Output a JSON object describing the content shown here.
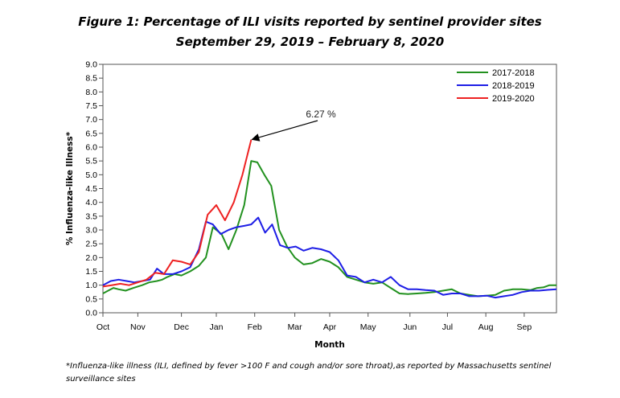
{
  "titles": {
    "line1": "Figure 1: Percentage of ILI visits reported by sentinel provider sites",
    "line2": "September 29, 2019 –  February 8, 2020"
  },
  "footnote": "*Influenza-like illness (ILI, defined by fever >100 F and cough and/or sore throat),as reported by Massachusetts sentinel surveillance sites",
  "chart_data": {
    "type": "line",
    "xlabel": "Month",
    "ylabel": "% Influenza-like Illness*",
    "ylim": [
      0,
      9
    ],
    "xlim": [
      0,
      52
    ],
    "yticks": [
      "0.0",
      "0.5",
      "1.0",
      "1.5",
      "2.0",
      "2.5",
      "3.0",
      "3.5",
      "4.0",
      "4.5",
      "5.0",
      "5.5",
      "6.0",
      "6.5",
      "7.0",
      "7.5",
      "8.0",
      "8.5",
      "9.0"
    ],
    "xticks": [
      {
        "label": "Oct",
        "week": 0
      },
      {
        "label": "Nov",
        "week": 4
      },
      {
        "label": "Dec",
        "week": 9
      },
      {
        "label": "Jan",
        "week": 13
      },
      {
        "label": "Feb",
        "week": 17.4
      },
      {
        "label": "Mar",
        "week": 22
      },
      {
        "label": "Apr",
        "week": 26
      },
      {
        "label": "May",
        "week": 30.4
      },
      {
        "label": "Jun",
        "week": 35.2
      },
      {
        "label": "Jul",
        "week": 39.5
      },
      {
        "label": "Aug",
        "week": 43.9
      },
      {
        "label": "Sep",
        "week": 48.3
      }
    ],
    "grid": false,
    "legend_position": "top-right",
    "series": [
      {
        "name": "2017-2018",
        "color": "#22911f",
        "x": [
          0,
          0.6,
          1.2,
          1.8,
          2.6,
          3.5,
          4.5,
          5.3,
          6.2,
          6.8,
          7.4,
          8.2,
          9.0,
          10.0,
          11.0,
          11.8,
          12.6,
          13.6,
          14.4,
          15.3,
          16.2,
          17.0,
          17.7,
          18.5,
          19.3,
          20.2,
          21.1,
          22.0,
          23.0,
          24.0,
          25.0,
          26.0,
          27.0,
          28.0,
          29.0,
          30.0,
          31.0,
          32.0,
          33.0,
          34.0,
          35.0,
          36.0,
          37.0,
          38.0,
          39.0,
          40.0,
          41.0,
          42.0,
          43.0,
          44.0,
          45.0,
          46.0,
          47.0,
          48.0,
          49.0,
          49.8,
          50.5,
          51.2,
          52.0
        ],
        "y": [
          0.7,
          0.8,
          0.9,
          0.85,
          0.8,
          0.9,
          1.0,
          1.1,
          1.15,
          1.2,
          1.3,
          1.4,
          1.35,
          1.5,
          1.7,
          2.0,
          3.1,
          2.85,
          2.3,
          3.0,
          3.9,
          5.5,
          5.45,
          5.0,
          4.6,
          3.0,
          2.4,
          2.0,
          1.75,
          1.8,
          1.95,
          1.85,
          1.65,
          1.3,
          1.2,
          1.1,
          1.05,
          1.1,
          0.9,
          0.7,
          0.68,
          0.7,
          0.72,
          0.75,
          0.8,
          0.85,
          0.7,
          0.65,
          0.6,
          0.62,
          0.65,
          0.8,
          0.85,
          0.85,
          0.82,
          0.9,
          0.92,
          1.0,
          1.0
        ]
      },
      {
        "name": "2018-2019",
        "color": "#1e1ee6",
        "x": [
          0,
          0.9,
          1.8,
          2.7,
          3.6,
          4.5,
          5.4,
          6.2,
          7.0,
          8.0,
          9.0,
          10.0,
          11.0,
          11.8,
          12.6,
          13.5,
          14.4,
          15.3,
          16.2,
          17.0,
          17.8,
          18.6,
          19.4,
          20.3,
          21.2,
          22.1,
          23.0,
          24.0,
          25.0,
          26.0,
          27.0,
          28.0,
          29.0,
          30.0,
          31.0,
          32.0,
          33.0,
          34.0,
          35.0,
          36.0,
          37.0,
          38.0,
          39.0,
          40.0,
          41.0,
          42.0,
          43.0,
          44.0,
          45.0,
          46.0,
          47.0,
          48.0,
          49.0,
          50.0,
          51.0,
          52.0
        ],
        "y": [
          1.0,
          1.15,
          1.2,
          1.15,
          1.1,
          1.15,
          1.2,
          1.6,
          1.4,
          1.4,
          1.5,
          1.65,
          2.3,
          3.3,
          3.2,
          2.85,
          3.0,
          3.1,
          3.15,
          3.2,
          3.45,
          2.9,
          3.2,
          2.45,
          2.35,
          2.4,
          2.25,
          2.35,
          2.3,
          2.2,
          1.9,
          1.35,
          1.3,
          1.1,
          1.2,
          1.1,
          1.3,
          1.0,
          0.85,
          0.85,
          0.82,
          0.8,
          0.65,
          0.7,
          0.7,
          0.6,
          0.6,
          0.62,
          0.55,
          0.6,
          0.65,
          0.75,
          0.8,
          0.8,
          0.83,
          0.85
        ]
      },
      {
        "name": "2019-2020",
        "color": "#ee2222",
        "x": [
          0,
          1,
          2,
          3,
          4,
          5,
          6,
          7,
          8,
          9,
          10,
          11,
          12,
          13,
          14,
          15,
          16,
          17
        ],
        "y": [
          0.95,
          1.0,
          1.05,
          1.0,
          1.1,
          1.2,
          1.45,
          1.4,
          1.9,
          1.85,
          1.75,
          2.2,
          3.55,
          3.9,
          3.35,
          4.0,
          5.0,
          6.27
        ]
      }
    ],
    "annotation": {
      "text": "6.27 %",
      "target_x": 17,
      "target_y": 6.27
    }
  }
}
